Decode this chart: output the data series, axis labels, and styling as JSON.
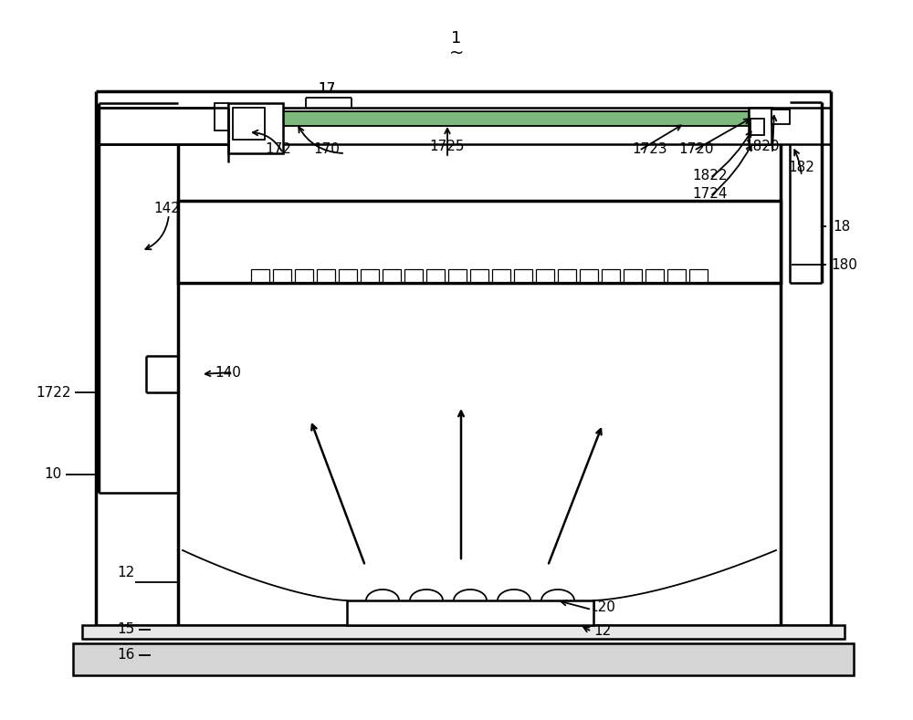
{
  "bg_color": "#ffffff",
  "line_color": "#000000",
  "fig_width": 10.0,
  "fig_height": 7.89,
  "dpi": 100
}
